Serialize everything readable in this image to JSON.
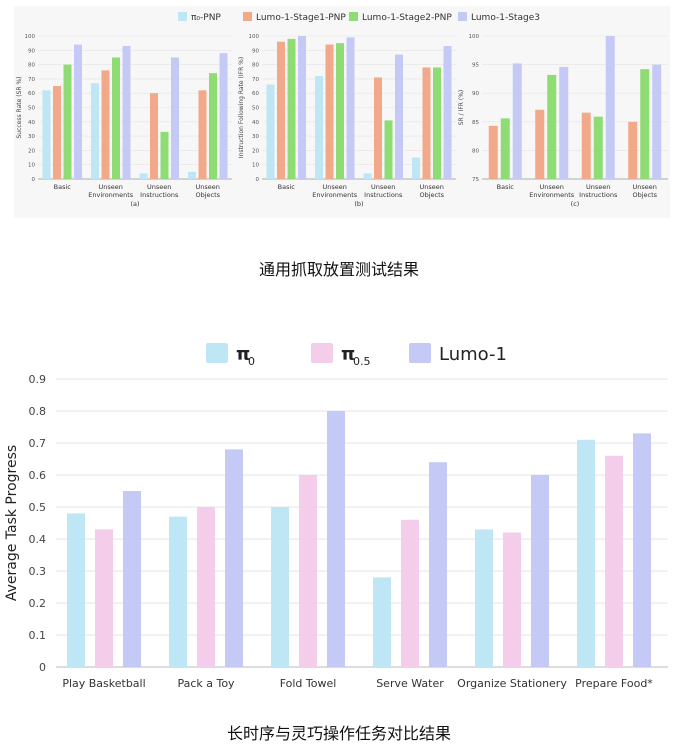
{
  "top": {
    "legend": [
      {
        "label": "π₀-PNP",
        "color": "#bfe6f5"
      },
      {
        "label": "Lumo-1-Stage1-PNP",
        "color": "#f2a98a"
      },
      {
        "label": "Lumo-1-Stage2-PNP",
        "color": "#8fdc74"
      },
      {
        "label": "Lumo-1-Stage3",
        "color": "#c4c9f5"
      }
    ],
    "caption": "通用抓取放置测试结果"
  },
  "bottom": {
    "legend": [
      {
        "label": "π",
        "sub": "0",
        "color": "#bfe6f5"
      },
      {
        "label": "π",
        "sub": "0.5",
        "color": "#f3cdea"
      },
      {
        "label": "Lumo-1",
        "sub": "",
        "color": "#c4c9f5"
      }
    ],
    "caption": "长时序与灵巧操作任务对比结果"
  },
  "chart_data": [
    {
      "type": "bar",
      "title": "",
      "panel_label": "(a)",
      "ylabel": "Success Rate (SR %)",
      "ylim": [
        0,
        100
      ],
      "yticks": [
        0,
        10,
        20,
        30,
        40,
        50,
        60,
        70,
        80,
        90,
        100
      ],
      "categories": [
        [
          "Basic"
        ],
        [
          "Unseen",
          "Environments"
        ],
        [
          "Unseen",
          "Instructions"
        ],
        [
          "Unseen",
          "Objects"
        ]
      ],
      "series": [
        {
          "name": "π₀-PNP",
          "color": "#bfe6f5",
          "values": [
            62,
            67,
            4,
            5
          ]
        },
        {
          "name": "Lumo-1-Stage1-PNP",
          "color": "#f2a98a",
          "values": [
            65,
            76,
            60,
            62
          ]
        },
        {
          "name": "Lumo-1-Stage2-PNP",
          "color": "#8fdc74",
          "values": [
            80,
            85,
            33,
            74
          ]
        },
        {
          "name": "Lumo-1-Stage3",
          "color": "#c4c9f5",
          "values": [
            94,
            93,
            85,
            88
          ]
        }
      ]
    },
    {
      "type": "bar",
      "title": "",
      "panel_label": "(b)",
      "ylabel": "Instruction Following Rate (IFR %)",
      "ylim": [
        0,
        100
      ],
      "yticks": [
        0,
        10,
        20,
        30,
        40,
        50,
        60,
        70,
        80,
        90,
        100
      ],
      "categories": [
        [
          "Basic"
        ],
        [
          "Unseen",
          "Environments"
        ],
        [
          "Unseen",
          "Instructions"
        ],
        [
          "Unseen",
          "Objects"
        ]
      ],
      "series": [
        {
          "name": "π₀-PNP",
          "color": "#bfe6f5",
          "values": [
            66,
            72,
            4,
            15
          ]
        },
        {
          "name": "Lumo-1-Stage1-PNP",
          "color": "#f2a98a",
          "values": [
            96,
            94,
            71,
            78
          ]
        },
        {
          "name": "Lumo-1-Stage2-PNP",
          "color": "#8fdc74",
          "values": [
            98,
            95,
            41,
            78
          ]
        },
        {
          "name": "Lumo-1-Stage3",
          "color": "#c4c9f5",
          "values": [
            100,
            99,
            87,
            93
          ]
        }
      ]
    },
    {
      "type": "bar",
      "title": "",
      "panel_label": "(c)",
      "ylabel": "SR / IFR (%)",
      "ylim": [
        75,
        100
      ],
      "yticks": [
        75,
        80,
        85,
        90,
        95,
        100
      ],
      "categories": [
        [
          "Basic"
        ],
        [
          "Unseen",
          "Environments"
        ],
        [
          "Unseen",
          "Instructions"
        ],
        [
          "Unseen",
          "Objects"
        ]
      ],
      "series": [
        {
          "name": "Lumo-1-Stage1-PNP",
          "color": "#f2a98a",
          "values": [
            84.3,
            87.1,
            86.6,
            85
          ]
        },
        {
          "name": "Lumo-1-Stage2-PNP",
          "color": "#8fdc74",
          "values": [
            85.6,
            93.2,
            85.9,
            94.2
          ]
        },
        {
          "name": "Lumo-1-Stage3",
          "color": "#c4c9f5",
          "values": [
            95.2,
            94.6,
            100,
            95
          ]
        }
      ]
    },
    {
      "type": "bar",
      "title": "",
      "ylabel": "Average Task Progress",
      "ylim": [
        0,
        0.9
      ],
      "yticks": [
        "0",
        "0.1",
        "0.2",
        "0.3",
        "0.4",
        "0.5",
        "0.6",
        "0.7",
        "0.8",
        "0.9"
      ],
      "categories": [
        "Play Basketball",
        "Pack a Toy",
        "Fold Towel",
        "Serve Water",
        "Organize Stationery",
        "Prepare Food*"
      ],
      "series": [
        {
          "name": "π0",
          "color": "#bfe6f5",
          "values": [
            0.48,
            0.47,
            0.5,
            0.28,
            0.43,
            0.71
          ]
        },
        {
          "name": "π0.5",
          "color": "#f3cdea",
          "values": [
            0.43,
            0.5,
            0.6,
            0.46,
            0.42,
            0.66
          ]
        },
        {
          "name": "Lumo-1",
          "color": "#c4c9f5",
          "values": [
            0.55,
            0.68,
            0.8,
            0.64,
            0.6,
            0.73
          ]
        }
      ]
    }
  ]
}
